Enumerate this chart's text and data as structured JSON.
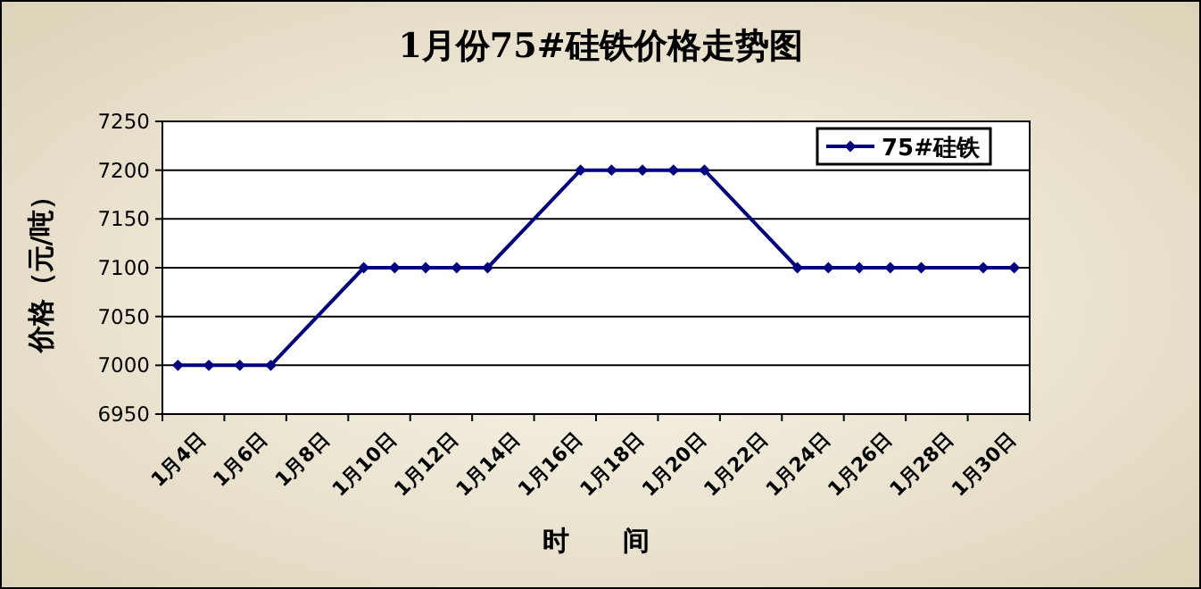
{
  "chart_data": {
    "type": "line",
    "title": "1月份75#硅铁价格走势图",
    "xlabel": "时　　间",
    "ylabel": "价格（元/吨）",
    "categories": [
      "1月4日",
      null,
      "1月6日",
      null,
      "1月8日",
      null,
      "1月10日",
      null,
      "1月12日",
      null,
      "1月14日",
      null,
      "1月16日",
      null,
      "1月18日",
      null,
      "1月20日",
      null,
      "1月22日",
      null,
      "1月24日",
      null,
      "1月26日",
      null,
      "1月28日",
      null,
      "1月30日",
      null
    ],
    "series": [
      {
        "name": "75#硅铁",
        "color": "#000080",
        "values": [
          7000,
          7000,
          7000,
          7000,
          null,
          null,
          7100,
          7100,
          7100,
          7100,
          7100,
          null,
          null,
          7200,
          7200,
          7200,
          7200,
          7200,
          null,
          null,
          7100,
          7100,
          7100,
          7100,
          7100,
          null,
          7100,
          7100
        ]
      }
    ],
    "ylim": [
      6950,
      7250
    ],
    "yticks": [
      6950,
      7000,
      7050,
      7100,
      7150,
      7200,
      7250
    ],
    "grid": "y",
    "legend": "top right",
    "marker": "diamond",
    "line_style": "solid"
  }
}
